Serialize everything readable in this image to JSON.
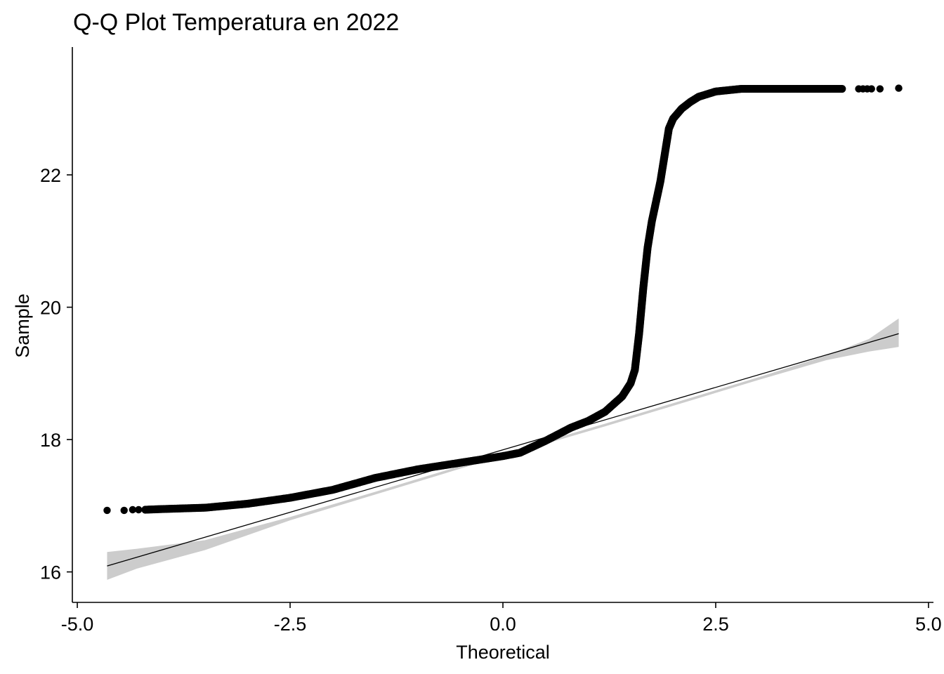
{
  "chart_data": {
    "type": "scatter",
    "title": "Q-Q Plot Temperatura en 2022",
    "xlabel": "Theoretical",
    "ylabel": "Sample",
    "xlim": [
      -5.05,
      5.05
    ],
    "ylim": [
      15.55,
      23.9
    ],
    "x_ticks": [
      -5.0,
      -2.5,
      0.0,
      2.5,
      5.0
    ],
    "x_tick_labels": [
      "-5.0",
      "-2.5",
      "0.0",
      "2.5",
      "5.0"
    ],
    "y_ticks": [
      16,
      18,
      20,
      22
    ],
    "y_tick_labels": [
      "16",
      "18",
      "20",
      "22"
    ],
    "grid": false,
    "point_color": "#000000",
    "reference_line": {
      "color": "#000000",
      "x": [
        -4.65,
        4.65
      ],
      "y": [
        16.09,
        19.6
      ]
    },
    "confidence_band": {
      "color": "#cccccc",
      "x": [
        -4.65,
        -4.3,
        -3.5,
        -2.5,
        -1.5,
        -0.5,
        0.3,
        1.2,
        2.0,
        3.0,
        3.8,
        4.3,
        4.65
      ],
      "lower": [
        15.88,
        16.05,
        16.33,
        16.78,
        17.17,
        17.56,
        17.86,
        18.2,
        18.51,
        18.9,
        19.2,
        19.33,
        19.4
      ],
      "upper": [
        16.3,
        16.35,
        16.48,
        16.83,
        17.21,
        17.6,
        17.9,
        18.24,
        18.55,
        18.94,
        19.27,
        19.52,
        19.83
      ]
    },
    "qq_curve": {
      "x": [
        -4.2,
        -4.0,
        -3.5,
        -3.0,
        -2.5,
        -2.0,
        -1.5,
        -1.0,
        -0.5,
        0.0,
        0.2,
        0.5,
        0.8,
        1.0,
        1.2,
        1.4,
        1.5,
        1.55,
        1.6,
        1.65,
        1.7,
        1.75,
        1.8,
        1.85,
        1.9,
        1.95,
        2.0,
        2.1,
        2.2,
        2.3,
        2.5,
        2.8,
        3.2,
        4.0
      ],
      "y": [
        16.94,
        16.95,
        16.97,
        17.03,
        17.12,
        17.24,
        17.42,
        17.55,
        17.65,
        17.75,
        17.8,
        17.98,
        18.18,
        18.28,
        18.42,
        18.65,
        18.85,
        19.05,
        19.6,
        20.3,
        20.9,
        21.3,
        21.6,
        21.9,
        22.3,
        22.7,
        22.85,
        23.0,
        23.1,
        23.18,
        23.26,
        23.3,
        23.3,
        23.3
      ]
    },
    "tail_points": {
      "x": [
        -4.65,
        -4.45,
        -4.35,
        -4.28,
        4.18,
        4.23,
        4.28,
        4.33,
        4.43,
        4.65
      ],
      "y": [
        16.93,
        16.93,
        16.94,
        16.94,
        23.3,
        23.3,
        23.3,
        23.3,
        23.3,
        23.31
      ]
    }
  }
}
